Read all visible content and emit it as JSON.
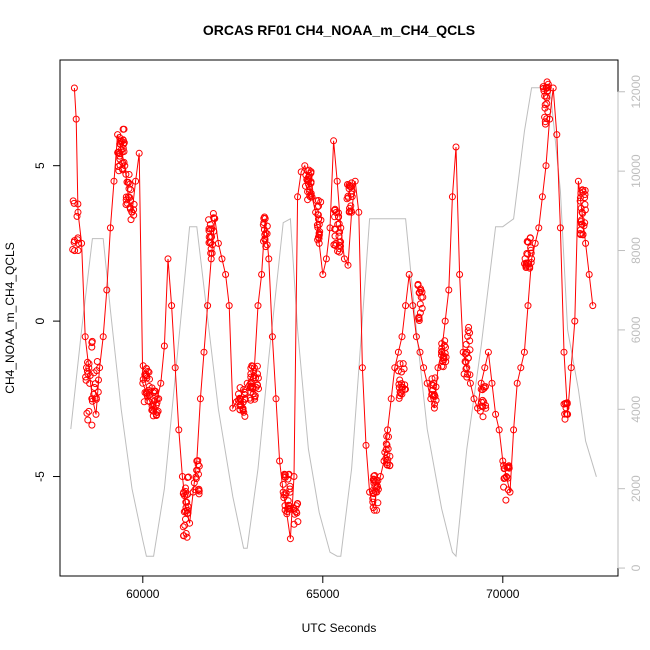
{
  "chart_data": {
    "type": "line",
    "title": "ORCAS RF01 CH4_NOAA_m_CH4_QCLS",
    "xlabel": "UTC Seconds",
    "ylabel": "CH4_NOAA_m_CH4_QCLS",
    "xlim": [
      57700,
      73200
    ],
    "ylim": [
      -8.2,
      8.4
    ],
    "y2lim": [
      -200,
      12800
    ],
    "x_ticks": [
      60000,
      65000,
      70000
    ],
    "x_tick_labels": [
      "60000",
      "65000",
      "70000"
    ],
    "y_ticks": [
      -5,
      0,
      5
    ],
    "y_tick_labels": [
      "-5",
      "0",
      "5"
    ],
    "y2_ticks": [
      0,
      2000,
      4000,
      6000,
      8000,
      10000,
      12000
    ],
    "y2_tick_labels": [
      "0",
      "2000",
      "4000",
      "6000",
      "8000",
      "10000",
      "12000"
    ],
    "colors": {
      "primary": "#ff0000",
      "secondary": "#bebebe",
      "axis": "#000000"
    },
    "series": [
      {
        "name": "CH4_NOAA_m_CH4_QCLS",
        "axis": "left",
        "style": "line+points",
        "color": "#ff0000",
        "x": [
          58100,
          58150,
          58200,
          58300,
          58400,
          58500,
          58600,
          58700,
          58800,
          58900,
          59000,
          59100,
          59200,
          59300,
          59400,
          59500,
          59600,
          59700,
          59800,
          59900,
          60000,
          60100,
          60200,
          60300,
          60400,
          60500,
          60600,
          60700,
          60800,
          60900,
          61000,
          61100,
          61200,
          61300,
          61400,
          61500,
          61600,
          61700,
          61800,
          61900,
          62000,
          62100,
          62200,
          62300,
          62400,
          62500,
          62600,
          62700,
          62800,
          62900,
          63000,
          63100,
          63200,
          63300,
          63400,
          63500,
          63600,
          63700,
          63800,
          63900,
          64000,
          64100,
          64200,
          64300,
          64400,
          64500,
          64600,
          64700,
          64800,
          64900,
          65000,
          65100,
          65200,
          65300,
          65400,
          65500,
          65600,
          65700,
          65800,
          65900,
          66000,
          66100,
          66200,
          66300,
          66400,
          66500,
          66600,
          66700,
          66800,
          66900,
          67000,
          67100,
          67200,
          67300,
          67400,
          67500,
          67600,
          67700,
          67800,
          67900,
          68000,
          68100,
          68200,
          68300,
          68400,
          68500,
          68600,
          68700,
          68800,
          68900,
          69000,
          69100,
          69200,
          69300,
          69400,
          69500,
          69600,
          69700,
          69800,
          69900,
          70000,
          70100,
          70200,
          70300,
          70400,
          70500,
          70600,
          70700,
          70800,
          70900,
          71000,
          71100,
          71200,
          71300,
          71400,
          71500,
          71600,
          71700,
          71800,
          71900,
          72000,
          72100,
          72200,
          72300,
          72400,
          72500
        ],
        "y": [
          7.5,
          6.5,
          3.5,
          2.5,
          -0.5,
          -1.5,
          -2.5,
          -3.0,
          -1.5,
          -0.5,
          1.0,
          3.0,
          4.5,
          6.0,
          5.5,
          5.0,
          4.0,
          3.5,
          4.5,
          5.4,
          -2.0,
          -2.3,
          -2.6,
          -2.9,
          -2.5,
          -2.0,
          -0.8,
          2.0,
          0.5,
          -1.5,
          -3.5,
          -5.0,
          -6.0,
          -6.5,
          -5.5,
          -4.5,
          -2.5,
          -1.0,
          0.5,
          2.0,
          3.3,
          2.5,
          2.0,
          1.5,
          0.5,
          -2.8,
          -2.6,
          -2.5,
          -2.2,
          -2.0,
          -1.8,
          -1.5,
          0.5,
          1.5,
          3.3,
          2.0,
          -0.5,
          -2.5,
          -4.5,
          -5.5,
          -6.2,
          -7.0,
          -5.0,
          4.0,
          4.8,
          5.0,
          4.5,
          4.0,
          3.5,
          2.5,
          1.5,
          2.0,
          3.0,
          5.8,
          4.5,
          3.0,
          2.0,
          1.8,
          3.5,
          4.5,
          3.5,
          -1.5,
          -4.0,
          -5.5,
          -6.0,
          -5.5,
          -5.0,
          -4.5,
          -3.5,
          -2.5,
          -1.5,
          -1.0,
          -0.5,
          0.5,
          1.5,
          0.5,
          -0.5,
          -1.0,
          -1.5,
          -2.0,
          -2.5,
          -2.8,
          -1.5,
          -1.0,
          0.0,
          1.0,
          4.0,
          5.6,
          1.5,
          -1.0,
          -1.5,
          -2.0,
          -2.5,
          -2.8,
          -2.0,
          -1.5,
          -1.0,
          -2.0,
          -3.0,
          -3.5,
          -4.5,
          -5.0,
          -5.5,
          -3.5,
          -2.0,
          -1.5,
          -1.0,
          0.5,
          2.0,
          2.5,
          3.0,
          4.0,
          5.0,
          6.5,
          7.5,
          6.0,
          3.0,
          -1.0,
          -3.0,
          -1.5,
          0.0,
          4.5,
          3.5,
          2.5,
          1.5,
          0.5
        ],
        "point_clusters": [
          {
            "center_x": 58130,
            "center_y": 3.2,
            "spread_x": 80,
            "spread_y": 1.0,
            "count": 12
          },
          {
            "center_x": 58500,
            "center_y": -2.0,
            "spread_x": 100,
            "spread_y": 1.5,
            "count": 18
          },
          {
            "center_x": 58700,
            "center_y": -1.5,
            "spread_x": 80,
            "spread_y": 1.2,
            "count": 10
          },
          {
            "center_x": 59400,
            "center_y": 5.5,
            "spread_x": 100,
            "spread_y": 0.7,
            "count": 30
          },
          {
            "center_x": 59600,
            "center_y": 4.2,
            "spread_x": 80,
            "spread_y": 0.6,
            "count": 16
          },
          {
            "center_x": 59700,
            "center_y": 3.5,
            "spread_x": 60,
            "spread_y": 0.3,
            "count": 6
          },
          {
            "center_x": 60100,
            "center_y": -2.0,
            "spread_x": 100,
            "spread_y": 0.6,
            "count": 22
          },
          {
            "center_x": 60350,
            "center_y": -2.6,
            "spread_x": 100,
            "spread_y": 0.5,
            "count": 20
          },
          {
            "center_x": 61200,
            "center_y": -6.0,
            "spread_x": 80,
            "spread_y": 1.0,
            "count": 24
          },
          {
            "center_x": 61500,
            "center_y": -5.0,
            "spread_x": 80,
            "spread_y": 0.6,
            "count": 14
          },
          {
            "center_x": 61900,
            "center_y": 2.8,
            "spread_x": 80,
            "spread_y": 0.7,
            "count": 20
          },
          {
            "center_x": 62750,
            "center_y": -2.6,
            "spread_x": 100,
            "spread_y": 0.5,
            "count": 22
          },
          {
            "center_x": 63100,
            "center_y": -2.0,
            "spread_x": 120,
            "spread_y": 0.6,
            "count": 30
          },
          {
            "center_x": 63400,
            "center_y": 2.8,
            "spread_x": 60,
            "spread_y": 0.6,
            "count": 14
          },
          {
            "center_x": 64000,
            "center_y": -5.6,
            "spread_x": 100,
            "spread_y": 0.8,
            "count": 26
          },
          {
            "center_x": 64250,
            "center_y": -6.3,
            "spread_x": 60,
            "spread_y": 0.5,
            "count": 10
          },
          {
            "center_x": 64600,
            "center_y": 4.4,
            "spread_x": 80,
            "spread_y": 0.5,
            "count": 24
          },
          {
            "center_x": 64900,
            "center_y": 3.3,
            "spread_x": 80,
            "spread_y": 0.7,
            "count": 20
          },
          {
            "center_x": 65400,
            "center_y": 3.0,
            "spread_x": 100,
            "spread_y": 0.8,
            "count": 26
          },
          {
            "center_x": 65750,
            "center_y": 4.0,
            "spread_x": 80,
            "spread_y": 0.5,
            "count": 18
          },
          {
            "center_x": 66450,
            "center_y": -5.5,
            "spread_x": 100,
            "spread_y": 0.6,
            "count": 22
          },
          {
            "center_x": 66800,
            "center_y": -4.2,
            "spread_x": 80,
            "spread_y": 0.5,
            "count": 16
          },
          {
            "center_x": 67200,
            "center_y": -2.0,
            "spread_x": 100,
            "spread_y": 0.7,
            "count": 20
          },
          {
            "center_x": 67700,
            "center_y": 0.6,
            "spread_x": 80,
            "spread_y": 0.6,
            "count": 16
          },
          {
            "center_x": 68100,
            "center_y": -2.3,
            "spread_x": 80,
            "spread_y": 0.5,
            "count": 14
          },
          {
            "center_x": 68350,
            "center_y": -1.0,
            "spread_x": 80,
            "spread_y": 0.5,
            "count": 18
          },
          {
            "center_x": 69000,
            "center_y": -1.0,
            "spread_x": 100,
            "spread_y": 0.8,
            "count": 20
          },
          {
            "center_x": 69450,
            "center_y": -2.6,
            "spread_x": 80,
            "spread_y": 0.5,
            "count": 14
          },
          {
            "center_x": 70100,
            "center_y": -5.2,
            "spread_x": 80,
            "spread_y": 0.6,
            "count": 16
          },
          {
            "center_x": 70700,
            "center_y": 2.2,
            "spread_x": 100,
            "spread_y": 0.5,
            "count": 22
          },
          {
            "center_x": 71200,
            "center_y": 7.0,
            "spread_x": 80,
            "spread_y": 0.7,
            "count": 22
          },
          {
            "center_x": 71750,
            "center_y": -3.0,
            "spread_x": 60,
            "spread_y": 0.5,
            "count": 10
          },
          {
            "center_x": 72200,
            "center_y": 3.5,
            "spread_x": 100,
            "spread_y": 0.8,
            "count": 24
          }
        ]
      },
      {
        "name": "Altitude",
        "axis": "right",
        "style": "line",
        "color": "#bebebe",
        "x": [
          58000,
          58300,
          58600,
          58900,
          59100,
          59400,
          59700,
          60000,
          60100,
          60300,
          60600,
          60900,
          61300,
          61500,
          61800,
          62100,
          62500,
          62800,
          62900,
          63200,
          63500,
          63900,
          64100,
          64300,
          64600,
          64900,
          65200,
          65400,
          65500,
          65800,
          66000,
          66300,
          66600,
          66900,
          67300,
          67600,
          67900,
          68300,
          68600,
          68700,
          69000,
          69400,
          69800,
          70000,
          70300,
          70600,
          70800,
          71000,
          71300,
          71600,
          71800,
          72100,
          72300,
          72600
        ],
        "y": [
          3500,
          6000,
          8300,
          8300,
          6500,
          4000,
          2000,
          700,
          300,
          300,
          2000,
          4800,
          8600,
          8600,
          6300,
          4000,
          1800,
          500,
          500,
          2500,
          5300,
          8700,
          8800,
          6000,
          3000,
          1400,
          400,
          300,
          300,
          2500,
          5000,
          8800,
          8800,
          8800,
          8800,
          6000,
          3500,
          1500,
          400,
          300,
          3000,
          5600,
          8600,
          8600,
          8800,
          11000,
          12100,
          12100,
          12200,
          9500,
          6000,
          4500,
          3200,
          2300
        ]
      }
    ]
  }
}
